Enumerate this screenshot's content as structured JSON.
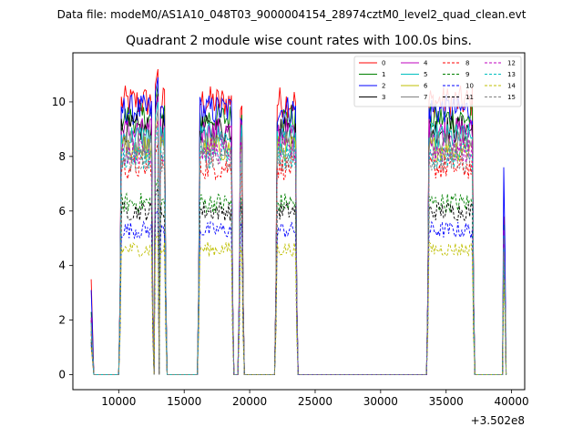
{
  "suptitle": "Data file: modeM0/AS1A10_048T03_9000004154_28974cztM0_level2_quad_clean.evt",
  "chart_data": {
    "type": "line",
    "title": "Quadrant 2 module wise count rates with 100.0s bins.",
    "xlabel": "",
    "ylabel": "",
    "x_offset_label": "+3.502e8",
    "xlim": [
      6500,
      41000
    ],
    "ylim": [
      -0.55,
      11.8
    ],
    "xticks": [
      10000,
      15000,
      20000,
      25000,
      30000,
      35000,
      40000
    ],
    "xtick_labels": [
      "10000",
      "15000",
      "20000",
      "25000",
      "30000",
      "35000",
      "40000"
    ],
    "yticks": [
      0,
      2,
      4,
      6,
      8,
      10
    ],
    "ytick_labels": [
      "0",
      "2",
      "4",
      "6",
      "8",
      "10"
    ],
    "legend_position": "upper right",
    "observation_segments": [
      {
        "start": 7900,
        "end": 8100,
        "kind": "spike"
      },
      {
        "start": 10100,
        "end": 12600,
        "kind": "plateau"
      },
      {
        "start": 12800,
        "end": 13000,
        "kind": "spike"
      },
      {
        "start": 13100,
        "end": 13600,
        "kind": "plateau"
      },
      {
        "start": 16100,
        "end": 18700,
        "kind": "plateau"
      },
      {
        "start": 19200,
        "end": 19500,
        "kind": "plateau"
      },
      {
        "start": 22000,
        "end": 23600,
        "kind": "plateau"
      },
      {
        "start": 33600,
        "end": 37100,
        "kind": "plateau"
      },
      {
        "start": 39400,
        "end": 39500,
        "kind": "spike"
      }
    ],
    "series": [
      {
        "name": "0",
        "color": "#ff0000",
        "dash": "solid",
        "level": 10.0,
        "peak": 11.2,
        "start_spike": 3.5,
        "end_spike": 5.8
      },
      {
        "name": "1",
        "color": "#008000",
        "dash": "solid",
        "level": 9.4,
        "peak": 10.6,
        "start_spike": 2.3,
        "end_spike": 5.5
      },
      {
        "name": "2",
        "color": "#0000ff",
        "dash": "solid",
        "level": 9.7,
        "peak": 10.9,
        "start_spike": 3.1,
        "end_spike": 7.6
      },
      {
        "name": "3",
        "color": "#000000",
        "dash": "solid",
        "level": 9.0,
        "peak": 10.3,
        "start_spike": 2.0,
        "end_spike": 4.9
      },
      {
        "name": "4",
        "color": "#bf00bf",
        "dash": "solid",
        "level": 8.9,
        "peak": 10.2,
        "start_spike": 2.1,
        "end_spike": 5.3
      },
      {
        "name": "5",
        "color": "#00bfbf",
        "dash": "solid",
        "level": 8.7,
        "peak": 10.0,
        "start_spike": 1.9,
        "end_spike": 5.1
      },
      {
        "name": "6",
        "color": "#bfbf00",
        "dash": "solid",
        "level": 8.3,
        "peak": 9.4,
        "start_spike": 1.7,
        "end_spike": 4.7
      },
      {
        "name": "7",
        "color": "#808080",
        "dash": "solid",
        "level": 8.5,
        "peak": 9.7,
        "start_spike": 1.8,
        "end_spike": 5.0
      },
      {
        "name": "8",
        "color": "#ff0000",
        "dash": "dashed",
        "level": 7.6,
        "peak": 8.5,
        "start_spike": 1.5,
        "end_spike": 4.4
      },
      {
        "name": "9",
        "color": "#008000",
        "dash": "dashed",
        "level": 6.3,
        "peak": 7.2,
        "start_spike": 1.3,
        "end_spike": 4.0
      },
      {
        "name": "10",
        "color": "#0000ff",
        "dash": "dashed",
        "level": 5.3,
        "peak": 6.1,
        "start_spike": 1.1,
        "end_spike": 3.7
      },
      {
        "name": "11",
        "color": "#000000",
        "dash": "dashed",
        "level": 6.0,
        "peak": 6.9,
        "start_spike": 1.2,
        "end_spike": 4.2
      },
      {
        "name": "12",
        "color": "#bf00bf",
        "dash": "dashed",
        "level": 8.2,
        "peak": 9.3,
        "start_spike": 1.6,
        "end_spike": 4.8
      },
      {
        "name": "13",
        "color": "#00bfbf",
        "dash": "dashed",
        "level": 8.0,
        "peak": 9.1,
        "start_spike": 1.6,
        "end_spike": 4.6
      },
      {
        "name": "14",
        "color": "#bfbf00",
        "dash": "dashed",
        "level": 4.6,
        "peak": 5.2,
        "start_spike": 1.0,
        "end_spike": 3.5
      },
      {
        "name": "15",
        "color": "#808080",
        "dash": "dashed",
        "level": 7.9,
        "peak": 8.9,
        "start_spike": 1.5,
        "end_spike": 4.5
      }
    ]
  }
}
